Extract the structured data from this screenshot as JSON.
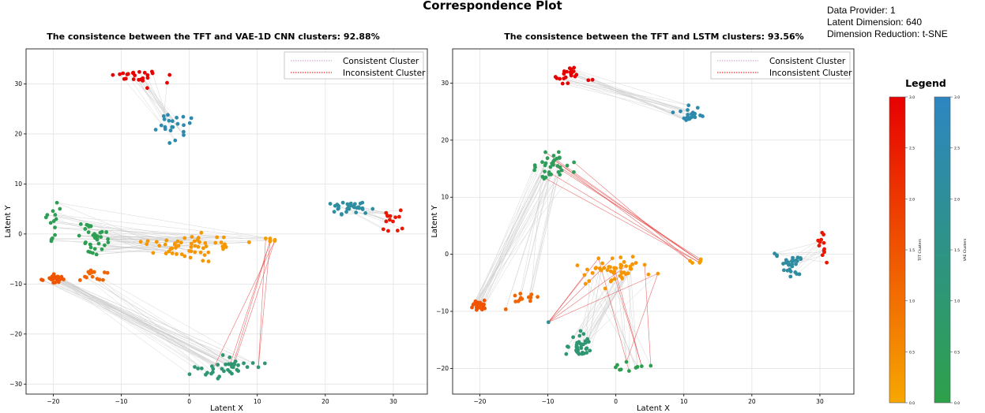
{
  "main_title": "Correspondence Plot",
  "info": {
    "provider": "Data Provider: 1",
    "latent_dim": "Latent Dimension: 640",
    "reduction": "Dimension Reduction: t-SNE"
  },
  "colors": {
    "tft_low": "#f7a700",
    "tft_high": "#e80000",
    "vae_low": "#2ea04a",
    "vae_high": "#2e86c1",
    "consistent_line": "#cccccc",
    "inconsistent_line": "#e53030"
  },
  "chart_data": [
    {
      "type": "scatter",
      "title": "The consistence between the TFT and VAE-1D CNN clusters: 92.88%",
      "xlabel": "Latent X",
      "ylabel": "Latent Y",
      "xlim": [
        -24,
        35
      ],
      "ylim": [
        -32,
        37
      ],
      "xticks": [
        -20,
        -10,
        0,
        10,
        20,
        30
      ],
      "yticks": [
        -30,
        -20,
        -10,
        0,
        10,
        20,
        30
      ],
      "grid": true,
      "legend_position": "top-right",
      "legend": [
        "Consistent Cluster",
        "Inconsistent Cluster"
      ],
      "clusters": [
        {
          "name": "TFT 3.0",
          "model": "TFT",
          "value": 3.0,
          "cx": -8,
          "cy": 31.5,
          "sx": 2.5,
          "sy": 1.5,
          "n": 24
        },
        {
          "name": "VAE 2.5",
          "model": "VAE",
          "value": 2.5,
          "cx": -2.5,
          "cy": 21.5,
          "sx": 1.6,
          "sy": 1.6,
          "n": 22
        },
        {
          "name": "VAE 2.2",
          "model": "VAE",
          "value": 2.2,
          "cx": 24,
          "cy": 5,
          "sx": 1.8,
          "sy": 1.0,
          "n": 30
        },
        {
          "name": "TFT 2.6",
          "model": "TFT",
          "value": 2.6,
          "cx": 30,
          "cy": 2.5,
          "sx": 1.0,
          "sy": 2.0,
          "n": 14
        },
        {
          "name": "VAE 0.3 left",
          "model": "VAE",
          "value": 0.3,
          "cx": -20,
          "cy": 2.5,
          "sx": 0.8,
          "sy": 2.5,
          "n": 14
        },
        {
          "name": "VAE 0.2",
          "model": "VAE",
          "value": 0.2,
          "cx": -14,
          "cy": -1,
          "sx": 1.5,
          "sy": 1.8,
          "n": 36
        },
        {
          "name": "TFT 0.3",
          "model": "TFT",
          "value": 0.3,
          "cx": 0,
          "cy": -2.5,
          "sx": 4.5,
          "sy": 1.8,
          "n": 55
        },
        {
          "name": "TFT 0.2",
          "model": "TFT",
          "value": 0.2,
          "cx": 12,
          "cy": -1.3,
          "sx": 1.0,
          "sy": 0.4,
          "n": 6
        },
        {
          "name": "TFT 1.5",
          "model": "TFT",
          "value": 1.5,
          "cx": -20,
          "cy": -9,
          "sx": 1.0,
          "sy": 0.6,
          "n": 30
        },
        {
          "name": "TFT 1.2",
          "model": "TFT",
          "value": 1.2,
          "cx": -14,
          "cy": -8.5,
          "sx": 2.2,
          "sy": 1.0,
          "n": 14
        },
        {
          "name": "VAE 1.0",
          "model": "VAE",
          "value": 1.0,
          "cx": 6,
          "cy": -26.5,
          "sx": 3.5,
          "sy": 1.5,
          "n": 40
        }
      ],
      "links": [
        {
          "from": "TFT 3.0",
          "to": "VAE 2.5",
          "n": 18,
          "inconsistent": false
        },
        {
          "from": "VAE 2.2",
          "to": "TFT 2.6",
          "n": 14,
          "inconsistent": false
        },
        {
          "from": "VAE 0.3 left",
          "to": "TFT 0.3",
          "n": 12,
          "inconsistent": false
        },
        {
          "from": "VAE 0.2",
          "to": "TFT 0.3",
          "n": 28,
          "inconsistent": false
        },
        {
          "from": "VAE 0.3 left",
          "to": "TFT 0.2",
          "n": 6,
          "inconsistent": false
        },
        {
          "from": "TFT 1.5",
          "to": "VAE 1.0",
          "n": 30,
          "inconsistent": false
        },
        {
          "from": "TFT 1.2",
          "to": "VAE 1.0",
          "n": 8,
          "inconsistent": false
        },
        {
          "from": "VAE 1.0",
          "to": "TFT 0.2",
          "n": 6,
          "inconsistent": true
        }
      ]
    },
    {
      "type": "scatter",
      "title": "The consistence between the TFT and LSTM clusters: 93.56%",
      "xlabel": "Latent X",
      "ylabel": "Latent Y",
      "xlim": [
        -24,
        35
      ],
      "ylim": [
        -24.5,
        36
      ],
      "xticks": [
        -20,
        -10,
        0,
        10,
        20,
        30
      ],
      "yticks": [
        -20,
        -10,
        0,
        10,
        20,
        30
      ],
      "grid": true,
      "legend_position": "top-right",
      "legend": [
        "Consistent Cluster",
        "Inconsistent Cluster"
      ],
      "clusters": [
        {
          "name": "TFT 3.0",
          "model": "TFT",
          "value": 3.0,
          "cx": -7,
          "cy": 31.5,
          "sx": 1.8,
          "sy": 1.2,
          "n": 22
        },
        {
          "name": "VAE 2.5",
          "model": "VAE",
          "value": 2.5,
          "cx": 11,
          "cy": 24.5,
          "sx": 1.6,
          "sy": 0.9,
          "n": 22
        },
        {
          "name": "LSTM 0.4",
          "model": "VAE",
          "value": 0.4,
          "cx": -9,
          "cy": 15.5,
          "sx": 2.4,
          "sy": 1.5,
          "n": 34
        },
        {
          "name": "TFT 2.6",
          "model": "TFT",
          "value": 2.6,
          "cx": 30.5,
          "cy": 2,
          "sx": 0.7,
          "sy": 1.8,
          "n": 12
        },
        {
          "name": "VAE 2.2",
          "model": "VAE",
          "value": 2.2,
          "cx": 25.5,
          "cy": -2,
          "sx": 1.5,
          "sy": 1.4,
          "n": 28
        },
        {
          "name": "TFT 0.3",
          "model": "TFT",
          "value": 0.3,
          "cx": 0.5,
          "cy": -3,
          "sx": 4.0,
          "sy": 1.8,
          "n": 50
        },
        {
          "name": "TFT 0.2",
          "model": "TFT",
          "value": 0.2,
          "cx": 12,
          "cy": -1.3,
          "sx": 1.0,
          "sy": 0.4,
          "n": 5
        },
        {
          "name": "TFT 1.5",
          "model": "TFT",
          "value": 1.5,
          "cx": -20,
          "cy": -9,
          "sx": 0.9,
          "sy": 0.6,
          "n": 26
        },
        {
          "name": "TFT 1.2",
          "model": "TFT",
          "value": 1.2,
          "cx": -14,
          "cy": -8,
          "sx": 2.0,
          "sy": 1.2,
          "n": 14
        },
        {
          "name": "VAE 1.0",
          "model": "VAE",
          "value": 1.0,
          "cx": -5.5,
          "cy": -16,
          "sx": 1.3,
          "sy": 1.6,
          "n": 36
        },
        {
          "name": "VAE 0.1",
          "model": "VAE",
          "value": 0.1,
          "cx": 2.5,
          "cy": -20,
          "sx": 2.0,
          "sy": 0.8,
          "n": 10
        },
        {
          "name": "VAE 1.9",
          "model": "VAE",
          "value": 1.9,
          "cx": -10,
          "cy": -12,
          "sx": 0.2,
          "sy": 0.2,
          "n": 1
        }
      ],
      "links": [
        {
          "from": "TFT 3.0",
          "to": "VAE 2.5",
          "n": 18,
          "inconsistent": false
        },
        {
          "from": "TFT 2.6",
          "to": "VAE 2.2",
          "n": 12,
          "inconsistent": false
        },
        {
          "from": "TFT 1.5",
          "to": "LSTM 0.4",
          "n": 22,
          "inconsistent": false
        },
        {
          "from": "TFT 1.2",
          "to": "LSTM 0.4",
          "n": 10,
          "inconsistent": false
        },
        {
          "from": "LSTM 0.4",
          "to": "TFT 0.2",
          "n": 8,
          "inconsistent": true
        },
        {
          "from": "TFT 0.3",
          "to": "VAE 1.0",
          "n": 22,
          "inconsistent": false
        },
        {
          "from": "TFT 0.3",
          "to": "VAE 0.1",
          "n": 10,
          "inconsistent": false
        },
        {
          "from": "TFT 0.3",
          "to": "VAE 1.9",
          "n": 5,
          "inconsistent": true
        },
        {
          "from": "TFT 0.3",
          "to": "VAE 0.1",
          "n": 5,
          "inconsistent": true
        }
      ]
    }
  ],
  "colorbars": {
    "title": "Legend",
    "ticks": [
      "0.0",
      "0.5",
      "1.0",
      "1.5",
      "2.0",
      "2.5",
      "3.0"
    ],
    "tft_label": "TFT Clusters",
    "vae_label": "VAE Clusters"
  }
}
